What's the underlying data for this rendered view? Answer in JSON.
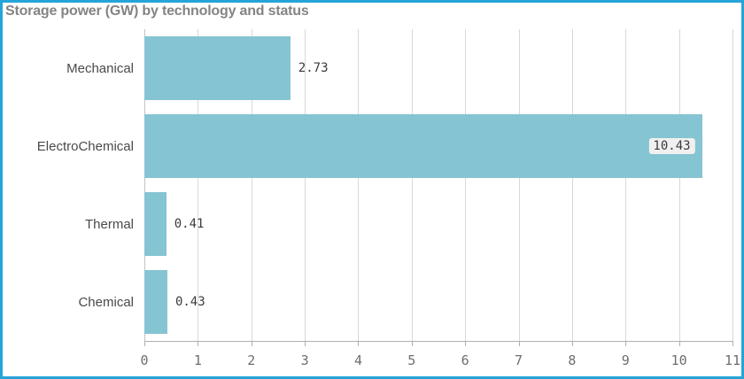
{
  "window": {
    "border_color": "#25a4d9",
    "background": "#ffffff"
  },
  "chart_data": {
    "type": "bar",
    "orientation": "horizontal",
    "title": "Storage power (GW) by technology and status",
    "categories": [
      "Mechanical",
      "ElectroChemical",
      "Thermal",
      "Chemical"
    ],
    "values": [
      2.73,
      10.43,
      0.41,
      0.43
    ],
    "value_labels": [
      "2.73",
      "10.43",
      "0.41",
      "0.43"
    ],
    "x_ticks": [
      0,
      1,
      2,
      3,
      4,
      5,
      6,
      7,
      8,
      9,
      10,
      11
    ],
    "xlim": [
      0,
      11
    ],
    "xlabel": "",
    "ylabel": "",
    "grid": "vertical-only",
    "legend": "none",
    "bar_color": "#85c4d2",
    "colors": {
      "grid_line": "#d8d8d8",
      "axis_line": "#b0b0b0",
      "tick_label": "#6e6e6e",
      "category_label": "#4a4a4a",
      "value_label": "#3c3c3c",
      "value_label_inside_bg": "#f0f0f0",
      "title": "#848484"
    }
  }
}
